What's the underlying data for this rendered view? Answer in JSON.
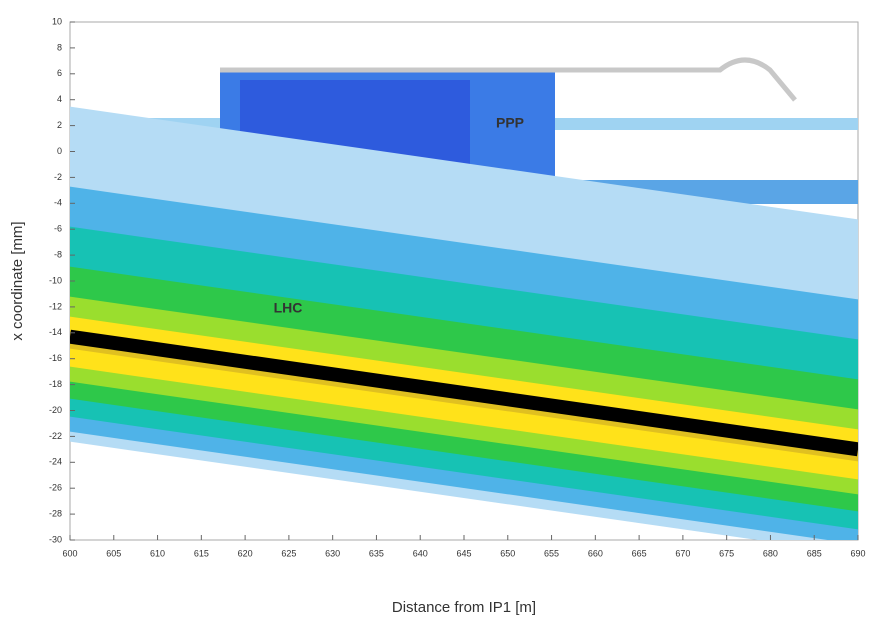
{
  "chart_data": {
    "type": "line",
    "xlabel": "Distance from IP1 [m]",
    "ylabel": "x coordinate [mm]",
    "annotations": [
      "PPP"
    ],
    "x": [
      600,
      690
    ],
    "series": [
      {
        "name": "LHC",
        "color": "#000000",
        "values": [
          -14.3,
          -23
        ]
      }
    ],
    "xlim": [
      600,
      690
    ],
    "xticks": [
      600,
      605,
      610,
      615,
      620,
      625,
      630,
      635,
      640,
      645,
      650,
      655,
      660,
      665,
      670,
      675,
      680,
      685,
      690
    ],
    "ylim": [
      -30,
      10
    ],
    "yticks": [
      10,
      8,
      6,
      4,
      2,
      0,
      -2,
      -4,
      -6,
      -8,
      -10,
      -12,
      -14,
      -16,
      -18,
      -20,
      -22,
      -24,
      -26,
      -28,
      -30
    ]
  }
}
